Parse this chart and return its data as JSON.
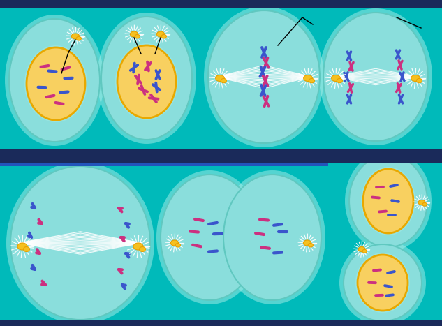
{
  "bg_color": "#00BABA",
  "dark_band_color": "#1a2a5a",
  "teal_cell_color": "#8ADEDC",
  "teal_cell_edge": "#60C8C0",
  "teal_glow": "#AAEEE8",
  "nucleus_color": "#F8D060",
  "nucleus_edge": "#E8A800",
  "spindle_color": "#FFFFFF",
  "chr_blue": "#3A55CC",
  "chr_purple": "#CC3080",
  "centrosome_color": "#F5C020",
  "centrosome_edge": "#E8A000",
  "fig_width": 6.33,
  "fig_height": 4.67,
  "dpi": 100,
  "row1_bg": "#00BABA",
  "row2_bg": "#00BABA"
}
